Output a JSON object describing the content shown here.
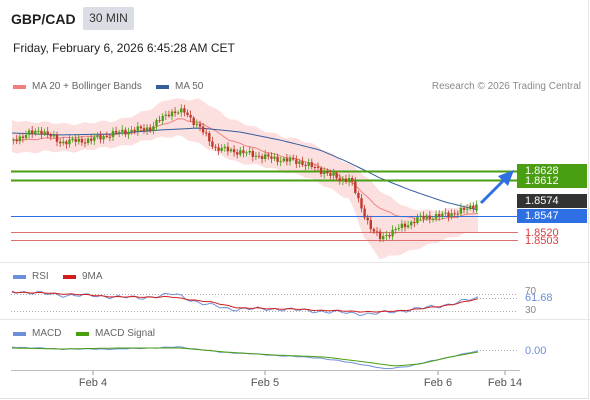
{
  "header": {
    "symbol": "GBP/CAD",
    "timeframe": "30 MIN",
    "datetime": "Friday, February 6, 2026 6:45:28 AM CET"
  },
  "legend": {
    "ma20": "MA 20 + Bollinger Bands",
    "ma50": "MA 50",
    "credit": "Research © 2026 Trading Central"
  },
  "colors": {
    "ma20": "#f08080",
    "ma50": "#355d9e",
    "bull": "#4a9e12",
    "bear": "#c0392b",
    "resistance": "#4a9e12",
    "support_blue": "#2f6fe4",
    "support_red": "#d84040",
    "rsi": "#6d8fd8",
    "rsi_ma": "#d11f1f",
    "macd": "#6d8fd8",
    "macd_signal": "#4a9e12"
  },
  "levels": {
    "r2": "1.8628",
    "r1": "1.8612",
    "last": "1.8574",
    "pivot": "1.8547",
    "s1": "1.8520",
    "s2": "1.8503"
  },
  "rsi_pane": {
    "label": "RSI",
    "ma_label": "9MA",
    "value": "61.68",
    "tick_upper": "70",
    "tick_lower": "30"
  },
  "macd_pane": {
    "label": "MACD",
    "signal_label": "MACD Signal",
    "value": "0.00"
  },
  "x_axis": {
    "ticks": [
      "Feb 4",
      "Feb 5",
      "Feb 6",
      "Feb 14"
    ]
  },
  "chart_data": {
    "type": "line",
    "x": [
      "Feb 4",
      "Feb 5",
      "Feb 6"
    ],
    "price": {
      "series": [
        {
          "name": "MA 20 + Bollinger Bands",
          "values": [
            1.8705,
            1.8712,
            1.869,
            1.8648,
            1.859,
            1.8558,
            1.8547
          ]
        },
        {
          "name": "MA 50",
          "values": [
            1.8722,
            1.872,
            1.8714,
            1.8688,
            1.864,
            1.86,
            1.8574
          ]
        }
      ],
      "close": [
        1.8718,
        1.8724,
        1.874,
        1.869,
        1.8655,
        1.86,
        1.851,
        1.854,
        1.856,
        1.8574
      ],
      "horizontal_levels": [
        1.8628,
        1.8612,
        1.8574,
        1.8547,
        1.852,
        1.8503
      ]
    },
    "rsi": {
      "last": 61.68,
      "levels": [
        70,
        30
      ]
    },
    "macd": {
      "last": 0.0
    }
  }
}
